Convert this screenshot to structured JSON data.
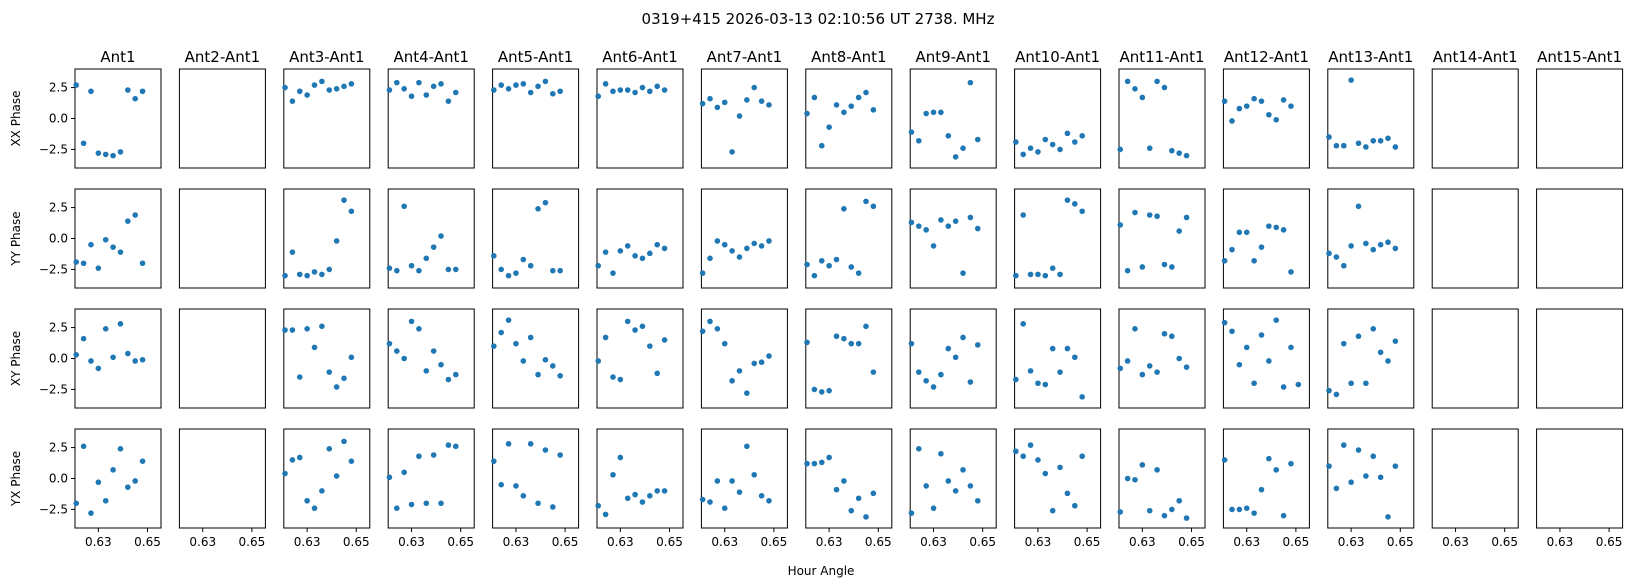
{
  "title": "0319+415  2026-03-13 02:10:56 UT  2738. MHz",
  "xlabel": "Hour Angle",
  "colors": {
    "marker": "#1f77b4",
    "frame": "#000000",
    "text": "#000000"
  },
  "chart_data": {
    "type": "scatter",
    "layout": "grid",
    "columns": [
      "Ant1",
      "Ant2-Ant1",
      "Ant3-Ant1",
      "Ant4-Ant1",
      "Ant5-Ant1",
      "Ant6-Ant1",
      "Ant7-Ant1",
      "Ant8-Ant1",
      "Ant9-Ant1",
      "Ant10-Ant1",
      "Ant11-Ant1",
      "Ant12-Ant1",
      "Ant13-Ant1",
      "Ant14-Ant1",
      "Ant15-Ant1"
    ],
    "rows": [
      "XX Phase",
      "YY Phase",
      "XY Phase",
      "YX Phase"
    ],
    "xlim": [
      0.6205,
      0.6555
    ],
    "ylim": [
      -4.0,
      4.0
    ],
    "xticks": [
      0.63,
      0.65
    ],
    "xtick_labels": [
      "0.63",
      "0.65"
    ],
    "yticks": [
      2.5,
      0.0,
      -2.5
    ],
    "ytick_labels": [
      "2.5",
      "0.0",
      "−2.5"
    ],
    "x": [
      0.621,
      0.624,
      0.627,
      0.63,
      0.633,
      0.636,
      0.639,
      0.642,
      0.645,
      0.648,
      0.651,
      0.654
    ],
    "panels": [
      [
        [
          2.7,
          -2.0,
          2.2,
          -2.8,
          -2.9,
          -3.0,
          -2.7,
          2.3,
          1.6,
          2.2
        ],
        [],
        [
          2.5,
          1.4,
          2.2,
          1.9,
          2.7,
          3.0,
          2.3,
          2.4,
          2.6,
          2.8
        ],
        [
          2.3,
          2.9,
          2.4,
          1.8,
          2.9,
          1.9,
          2.6,
          2.8,
          1.4,
          2.1
        ],
        [
          2.3,
          2.7,
          2.4,
          2.7,
          2.8,
          2.1,
          2.6,
          3.0,
          2.0,
          2.2
        ],
        [
          1.8,
          2.8,
          2.2,
          2.3,
          2.3,
          2.1,
          2.5,
          2.2,
          2.6,
          2.3
        ],
        [
          1.2,
          1.6,
          0.9,
          1.3,
          -2.7,
          0.2,
          1.5,
          2.5,
          1.4,
          1.1
        ],
        [
          0.4,
          1.7,
          -2.2,
          -0.7,
          1.1,
          0.5,
          1.0,
          1.7,
          2.1,
          0.7
        ],
        [
          -1.1,
          -1.8,
          0.4,
          0.5,
          0.5,
          -1.4,
          -3.1,
          -2.4,
          2.9,
          -1.7
        ],
        [
          -1.9,
          -2.9,
          -2.4,
          -2.7,
          -1.7,
          -2.1,
          -2.5,
          -1.2,
          -1.9,
          -1.4
        ],
        [
          -2.5,
          3.0,
          2.4,
          1.7,
          -2.4,
          3.0,
          2.5,
          -2.6,
          -2.8,
          -3.0
        ],
        [
          1.4,
          -0.2,
          0.8,
          1.0,
          1.6,
          1.4,
          0.3,
          -0.1,
          1.5,
          1.0
        ],
        [
          -1.5,
          -2.2,
          -2.2,
          3.1,
          -2.0,
          -2.3,
          -1.8,
          -1.8,
          -1.6,
          -2.3
        ],
        [],
        []
      ],
      [
        [
          -1.9,
          -2.0,
          -0.5,
          -2.4,
          -0.1,
          -0.7,
          -1.1,
          1.4,
          1.9,
          -2.0
        ],
        [],
        [
          -3.0,
          -1.1,
          -2.9,
          -3.0,
          -2.7,
          -2.9,
          -2.5,
          -0.2,
          3.1,
          2.2
        ],
        [
          -2.4,
          -2.6,
          2.6,
          -2.2,
          -2.6,
          -1.6,
          -0.7,
          0.2,
          -2.5,
          -2.5
        ],
        [
          -1.4,
          -2.5,
          -3.0,
          -2.8,
          -1.7,
          -2.2,
          2.4,
          2.9,
          -2.6,
          -2.6
        ],
        [
          -2.2,
          -1.1,
          -2.8,
          -1.0,
          -0.6,
          -1.4,
          -1.6,
          -1.2,
          -0.5,
          -0.8
        ],
        [
          -2.8,
          -1.6,
          -0.2,
          -0.5,
          -1.0,
          -1.5,
          -0.8,
          -0.4,
          -0.6,
          -0.2
        ],
        [
          -2.1,
          -3.0,
          -1.8,
          -2.2,
          -1.7,
          2.4,
          -2.3,
          -2.8,
          3.0,
          2.6
        ],
        [
          1.3,
          1.0,
          0.7,
          -0.6,
          1.5,
          1.0,
          1.4,
          -2.8,
          1.7,
          0.8
        ],
        [
          -3.0,
          1.9,
          -2.9,
          -2.9,
          -3.0,
          -2.4,
          -2.9,
          3.1,
          2.8,
          2.2
        ],
        [
          1.1,
          -2.6,
          2.1,
          -2.3,
          1.9,
          1.8,
          -2.1,
          -2.3,
          0.6,
          1.7
        ],
        [
          -1.8,
          -0.9,
          0.5,
          0.5,
          -1.8,
          -0.7,
          1.0,
          0.9,
          0.7,
          -2.7
        ],
        [
          -1.2,
          -1.5,
          -2.2,
          -0.6,
          2.6,
          -0.4,
          -0.9,
          -0.5,
          -0.3,
          -0.8
        ],
        [],
        []
      ],
      [
        [
          0.3,
          1.6,
          -0.2,
          -0.8,
          2.4,
          0.1,
          2.8,
          0.4,
          -0.2,
          -0.1
        ],
        [],
        [
          2.3,
          2.3,
          -1.5,
          2.4,
          0.9,
          2.6,
          -1.1,
          -2.3,
          -1.6,
          0.1
        ],
        [
          1.2,
          0.6,
          0.0,
          3.0,
          2.4,
          -1.0,
          0.6,
          -0.5,
          -1.7,
          -1.3
        ],
        [
          1.0,
          2.1,
          3.1,
          1.2,
          -0.2,
          1.7,
          -1.3,
          -0.1,
          -0.6,
          -1.4
        ],
        [
          -0.2,
          1.7,
          -1.5,
          -1.7,
          3.0,
          2.3,
          2.6,
          1.0,
          -1.2,
          1.5
        ],
        [
          2.2,
          3.0,
          2.4,
          1.2,
          -1.8,
          -1.0,
          -2.8,
          -0.4,
          -0.3,
          0.2
        ],
        [
          1.3,
          -2.5,
          -2.7,
          -2.6,
          1.8,
          1.6,
          1.2,
          1.2,
          2.6,
          -1.1
        ],
        [
          1.2,
          -1.1,
          -1.8,
          -2.3,
          -1.3,
          0.8,
          0.1,
          1.7,
          -1.9,
          1.1
        ],
        [
          -1.7,
          2.8,
          -1.0,
          -2.0,
          -2.1,
          0.8,
          -1.1,
          0.8,
          0.1,
          -3.1
        ],
        [
          -0.8,
          -0.2,
          2.4,
          -1.3,
          -0.6,
          -1.1,
          2.0,
          1.8,
          0.0,
          -0.7
        ],
        [
          2.9,
          2.2,
          -0.5,
          0.9,
          -2.0,
          1.9,
          -0.2,
          3.1,
          -2.3,
          0.9,
          -2.1
        ],
        [
          -2.6,
          -2.9,
          1.2,
          -2.0,
          1.8,
          -2.0,
          2.4,
          0.5,
          -0.2,
          1.4
        ],
        [],
        []
      ],
      [
        [
          -2.0,
          2.6,
          -2.8,
          -0.3,
          -1.8,
          0.7,
          2.4,
          -0.7,
          -0.2,
          1.4
        ],
        [],
        [
          0.4,
          1.5,
          1.7,
          -1.8,
          -2.4,
          -1.0,
          2.4,
          0.2,
          3.0,
          1.4
        ],
        [
          0.1,
          -2.4,
          0.5,
          -2.1,
          1.8,
          -2.0,
          1.9,
          -2.0,
          2.7,
          2.6
        ],
        [
          1.4,
          -0.5,
          2.8,
          -0.6,
          -1.4,
          2.8,
          -2.0,
          2.3,
          -2.3,
          1.9
        ],
        [
          -2.2,
          -2.9,
          0.3,
          1.7,
          -1.6,
          -1.3,
          -1.9,
          -1.4,
          -1.0,
          -1.0
        ],
        [
          -1.7,
          -1.9,
          -0.2,
          -2.4,
          -0.2,
          -1.1,
          2.6,
          0.3,
          -1.4,
          -1.8
        ],
        [
          1.2,
          1.2,
          1.3,
          1.7,
          -0.9,
          -0.2,
          -2.6,
          -1.6,
          -3.1,
          -1.2
        ],
        [
          -2.8,
          2.4,
          -0.6,
          -2.4,
          2.0,
          -0.2,
          -1.0,
          0.7,
          -0.6,
          -1.8
        ],
        [
          2.2,
          1.8,
          2.7,
          1.5,
          0.4,
          -2.6,
          0.9,
          -1.2,
          -2.2,
          1.8
        ],
        [
          -2.7,
          0.0,
          -0.1,
          1.1,
          -2.6,
          0.7,
          -3.0,
          -2.5,
          -1.8,
          -3.2
        ],
        [
          1.5,
          -2.5,
          -2.5,
          -2.4,
          -2.8,
          -0.9,
          1.6,
          0.7,
          -3.0,
          1.2
        ],
        [
          1.0,
          -0.8,
          2.7,
          -0.3,
          2.3,
          0.2,
          1.8,
          0.1,
          -3.1,
          1.0
        ],
        [],
        []
      ]
    ]
  }
}
